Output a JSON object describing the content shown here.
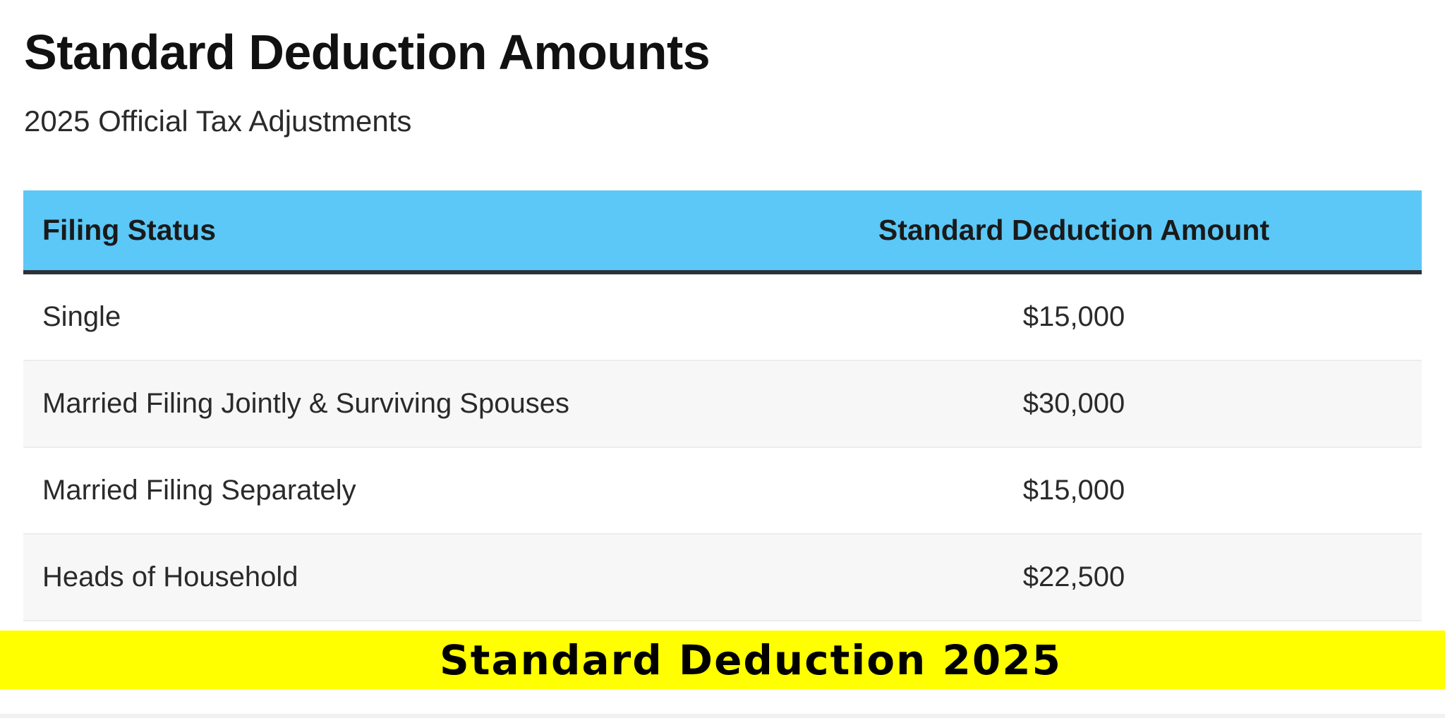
{
  "title": "Standard Deduction Amounts",
  "subtitle": "2025 Official Tax Adjustments",
  "colors": {
    "header_bg": "#5bc8f7",
    "banner_bg": "#ffff00",
    "header_border": "#2d3138"
  },
  "table": {
    "headers": [
      "Filing Status",
      "Standard Deduction Amount"
    ],
    "rows": [
      {
        "status": "Single",
        "amount": "$15,000"
      },
      {
        "status": "Married Filing Jointly & Surviving Spouses",
        "amount": "$30,000"
      },
      {
        "status": "Married Filing Separately",
        "amount": "$15,000"
      },
      {
        "status": "Heads of Household",
        "amount": "$22,500"
      }
    ]
  },
  "banner": {
    "text": "Standard Deduction 2025"
  }
}
